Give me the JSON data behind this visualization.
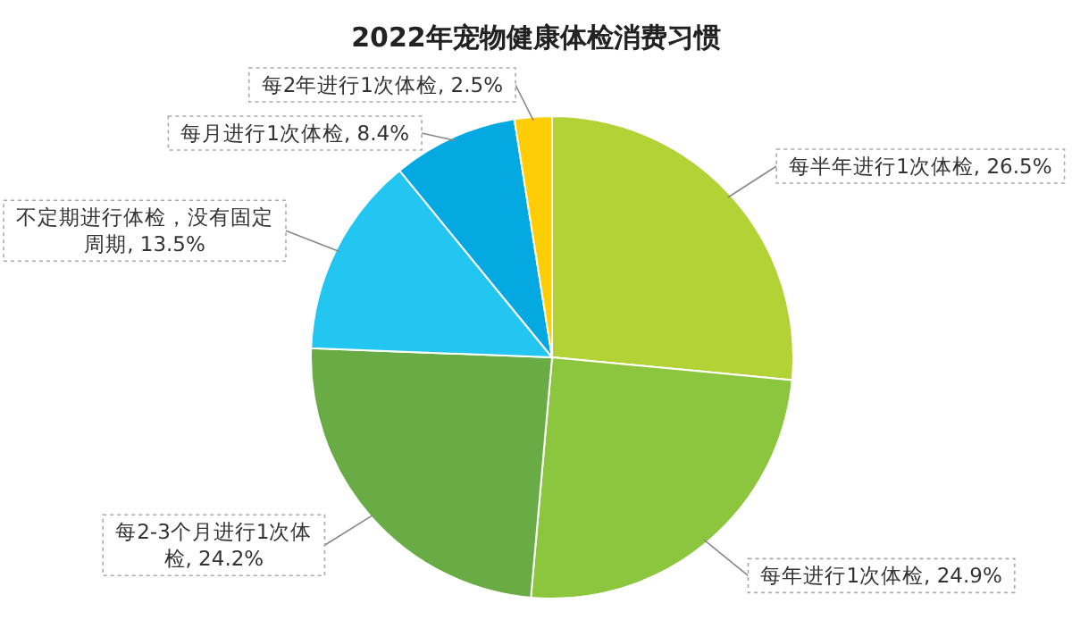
{
  "chart_data": {
    "type": "pie",
    "title": "2022年宠物健康体检消费习惯",
    "categories": [
      "每半年进行1次体检",
      "每年进行1次体检",
      "每2-3个月进行1次体检",
      "不定期进行体检，没有固定周期",
      "每月进行1次体检",
      "每2年进行1次体检"
    ],
    "values": [
      26.5,
      24.9,
      24.2,
      13.5,
      8.4,
      2.5
    ],
    "value_labels": [
      "26.5%",
      "24.9%",
      "24.2%",
      "13.5%",
      "8.4%",
      "2.5%"
    ],
    "colors": [
      "#b3d235",
      "#8cc63e",
      "#69ac45",
      "#22c6f0",
      "#04a9e1",
      "#fecd05"
    ]
  }
}
